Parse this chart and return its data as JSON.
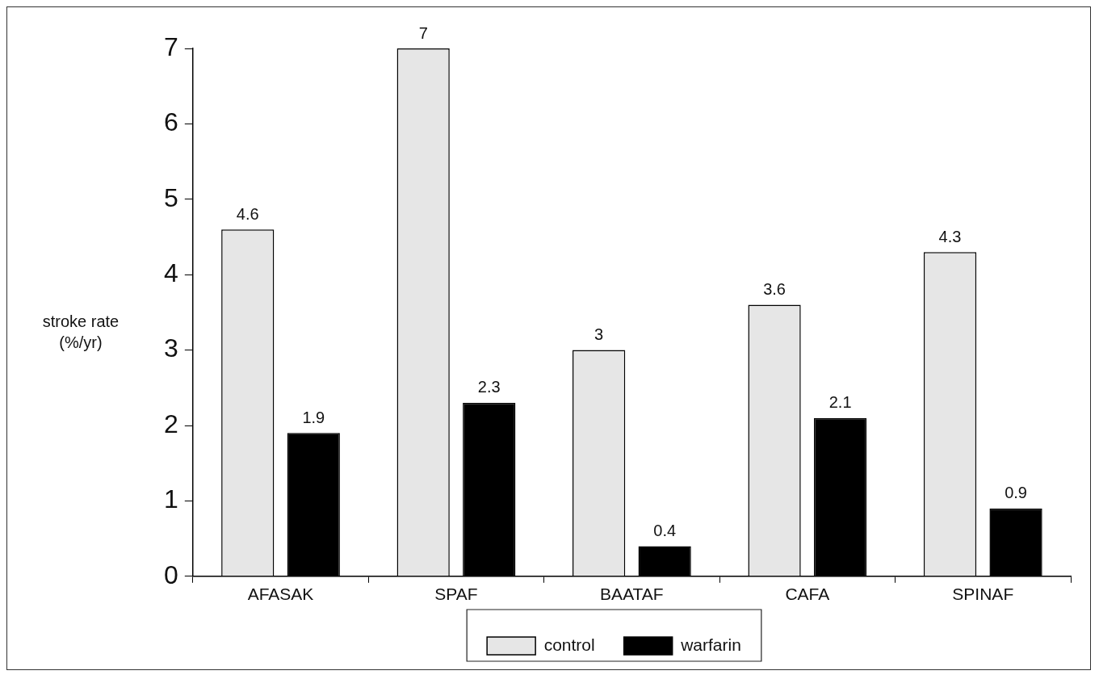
{
  "chart_data": {
    "type": "bar",
    "ylabel": "stroke rate (%/yr)",
    "categories": [
      "AFASAK",
      "SPAF",
      "BAATAF",
      "CAFA",
      "SPINAF"
    ],
    "series": [
      {
        "name": "control",
        "color": "#e6e6e6",
        "values": [
          4.6,
          7,
          3,
          3.6,
          4.3
        ]
      },
      {
        "name": "warfarin",
        "color": "#000000",
        "values": [
          1.9,
          2.3,
          0.4,
          2.1,
          0.9
        ]
      }
    ],
    "ylim": [
      0,
      7
    ],
    "yticks": [
      0,
      1,
      2,
      3,
      4,
      5,
      6,
      7
    ],
    "grid": false,
    "legend": "bottom",
    "data_labels": true
  }
}
